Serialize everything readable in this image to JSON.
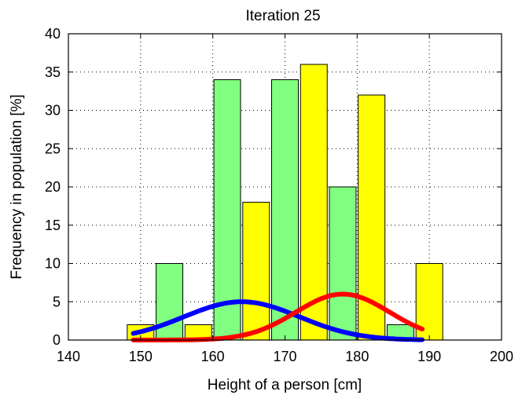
{
  "chart_data": {
    "type": "bar",
    "title": "Iteration 25",
    "xlabel": "Height of a person [cm]",
    "ylabel": "Frequency in population [%]",
    "xlim": [
      140,
      200
    ],
    "ylim": [
      0,
      40
    ],
    "xticks": [
      "140",
      "150",
      "160",
      "170",
      "180",
      "190",
      "200"
    ],
    "yticks": [
      "0",
      "5",
      "10",
      "15",
      "20",
      "25",
      "30",
      "35",
      "40"
    ],
    "grid": true,
    "colors": {
      "yellow_bars": "#ffff00",
      "green_bars": "#80ff80",
      "curve_blue": "#0000ff",
      "curve_red": "#ff0000"
    },
    "bars": [
      {
        "x": 150,
        "y": 2,
        "color": "yellow"
      },
      {
        "x": 154,
        "y": 10,
        "color": "green"
      },
      {
        "x": 158,
        "y": 2,
        "color": "yellow"
      },
      {
        "x": 162,
        "y": 34,
        "color": "green"
      },
      {
        "x": 166,
        "y": 18,
        "color": "yellow"
      },
      {
        "x": 170,
        "y": 34,
        "color": "green"
      },
      {
        "x": 174,
        "y": 36,
        "color": "yellow"
      },
      {
        "x": 178,
        "y": 20,
        "color": "green"
      },
      {
        "x": 182,
        "y": 32,
        "color": "yellow"
      },
      {
        "x": 186,
        "y": 2,
        "color": "green"
      },
      {
        "x": 190,
        "y": 10,
        "color": "yellow"
      }
    ],
    "curves": [
      {
        "color": "blue",
        "mean": 164,
        "sigma": 8,
        "peak": 5.0,
        "x_range": [
          149,
          189
        ]
      },
      {
        "color": "red",
        "mean": 178,
        "sigma": 6.5,
        "peak": 6.0,
        "x_range": [
          149,
          189
        ]
      }
    ]
  }
}
